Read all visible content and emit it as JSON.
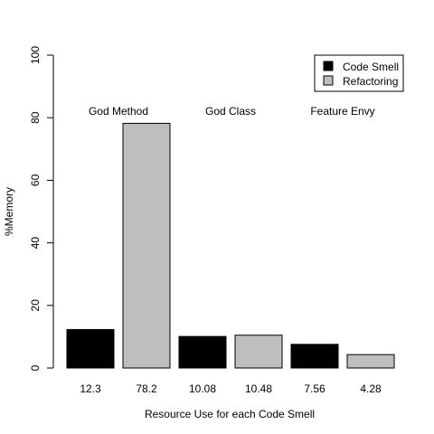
{
  "chart_data": {
    "type": "bar",
    "title": "",
    "xlabel": "Resource Use for each Code Smell",
    "ylabel": "%Memory",
    "ylim": [
      0,
      100
    ],
    "yticks": [
      "0",
      "20",
      "40",
      "60",
      "80",
      "100"
    ],
    "grid": false,
    "legend_position": "top-right",
    "groups": [
      "God Method",
      "God Class",
      "Feature Envy"
    ],
    "series": [
      {
        "name": "Code Smell",
        "color": "#000000"
      },
      {
        "name": "Refactoring",
        "color": "#bebebe"
      }
    ],
    "bars": [
      {
        "group": "God Method",
        "series": "Code Smell",
        "value": 12.3,
        "label": "12.3"
      },
      {
        "group": "God Method",
        "series": "Refactoring",
        "value": 78.2,
        "label": "78.2"
      },
      {
        "group": "God Class",
        "series": "Code Smell",
        "value": 10.08,
        "label": "10.08"
      },
      {
        "group": "God Class",
        "series": "Refactoring",
        "value": 10.48,
        "label": "10.48"
      },
      {
        "group": "Feature Envy",
        "series": "Code Smell",
        "value": 7.56,
        "label": "7.56"
      },
      {
        "group": "Feature Envy",
        "series": "Refactoring",
        "value": 4.28,
        "label": "4.28"
      }
    ]
  }
}
